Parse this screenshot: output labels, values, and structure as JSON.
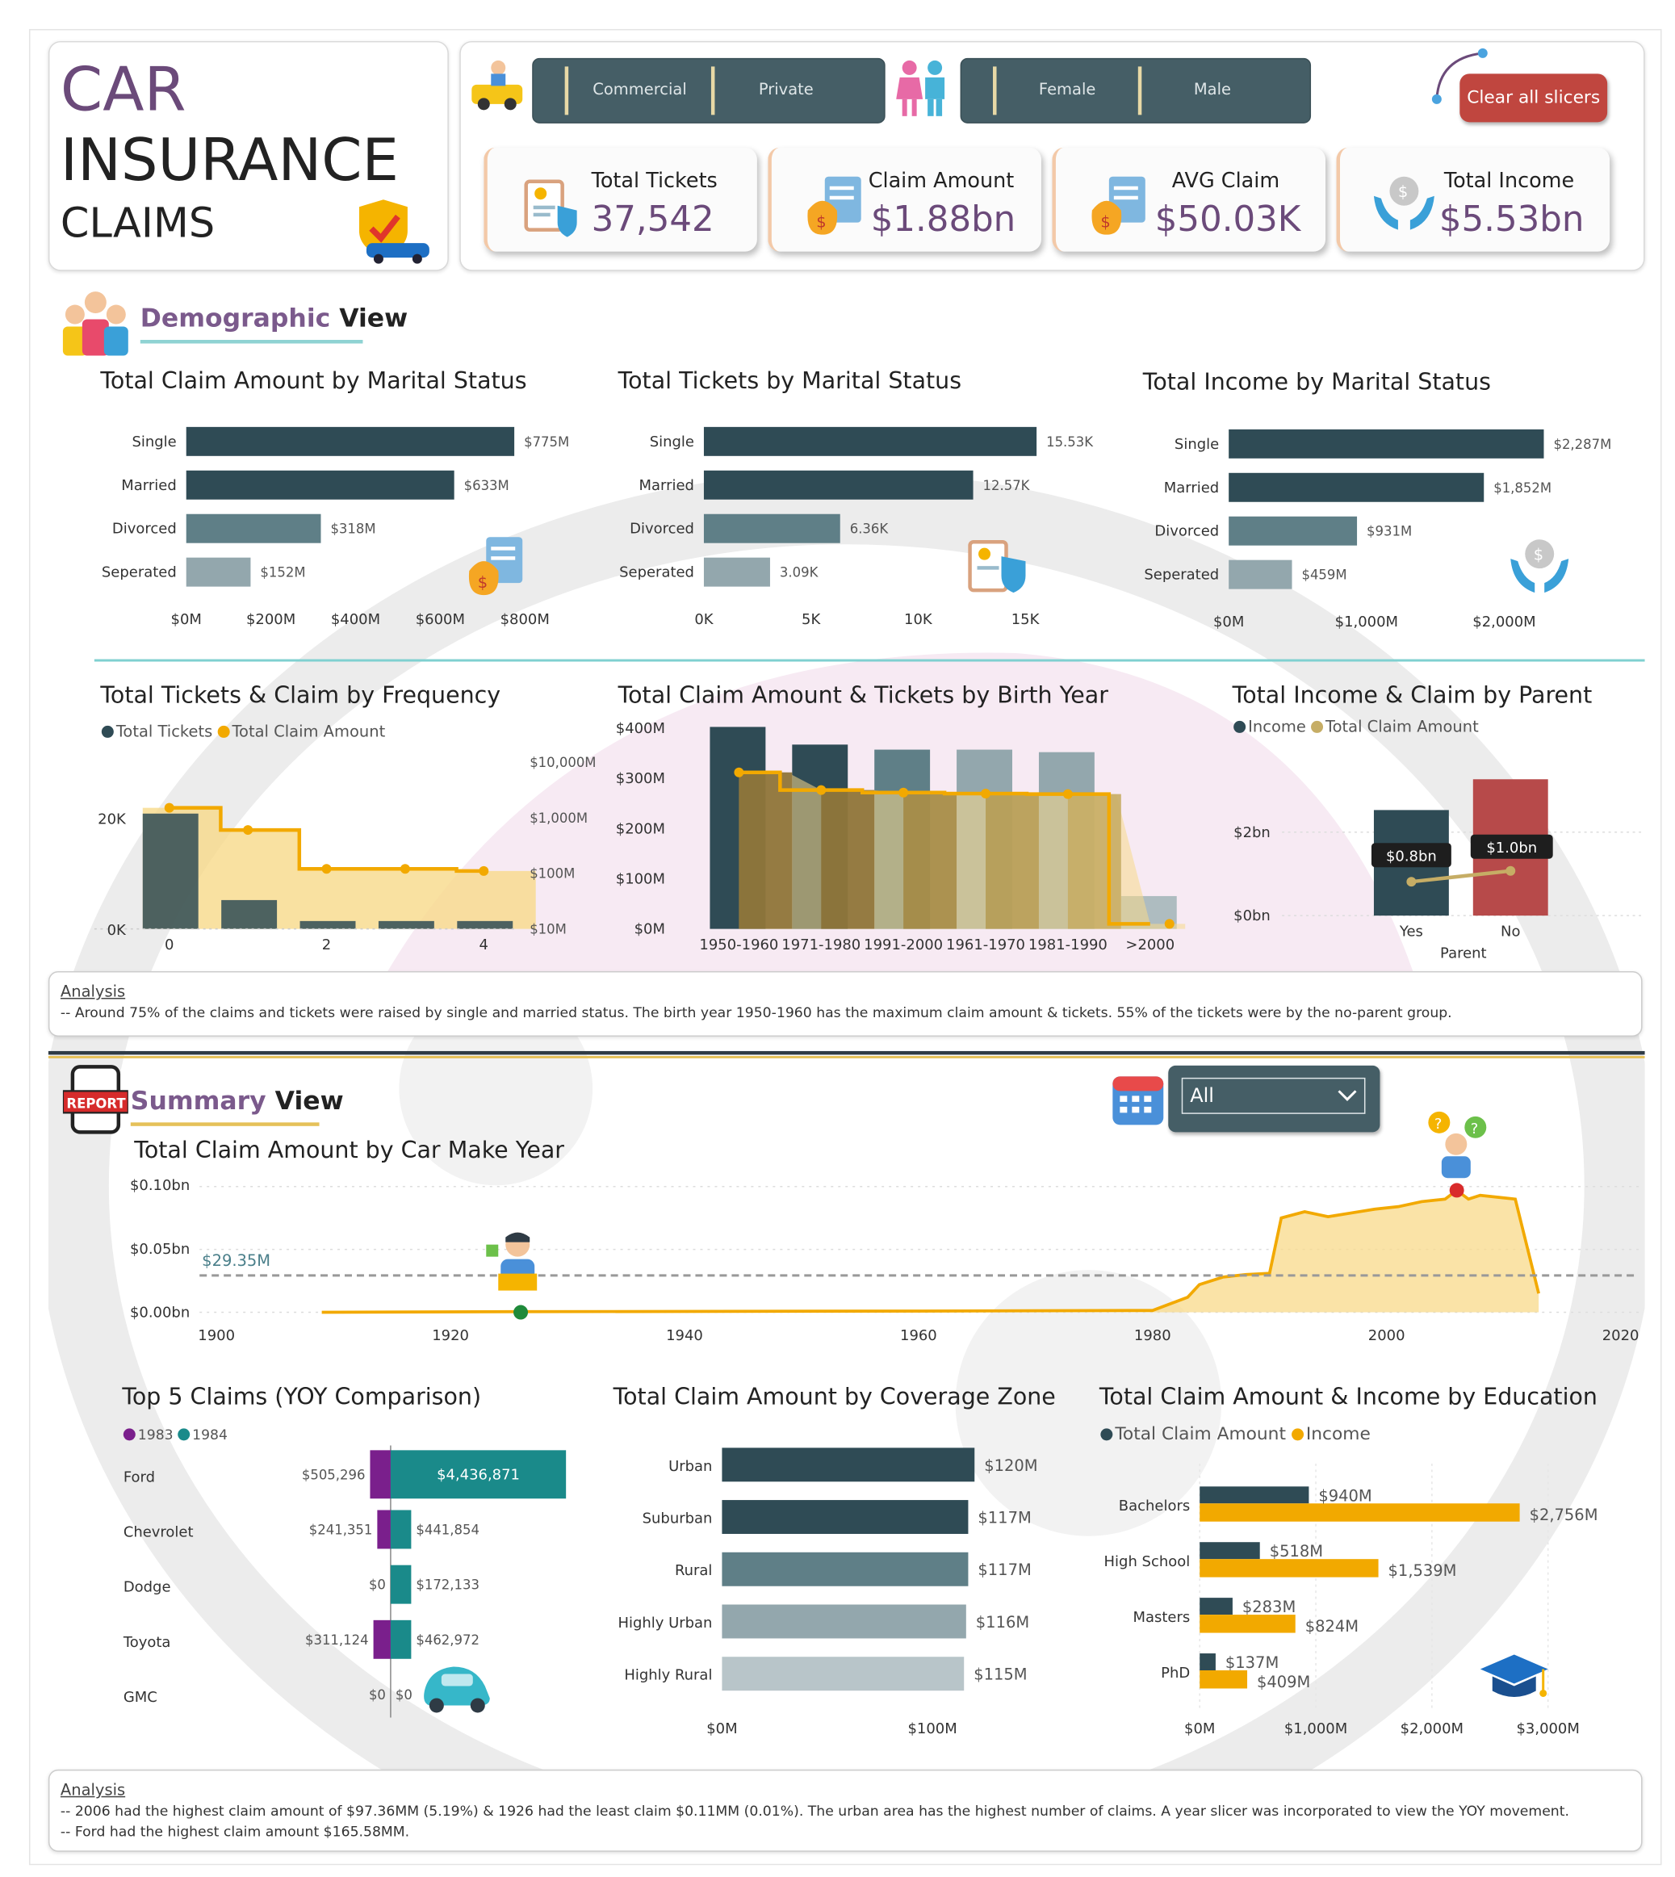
{
  "title": {
    "line1": "CAR",
    "line2": "INSURANCE",
    "line3": "CLAIMS"
  },
  "slicers": {
    "usage": [
      "Commercial",
      "Private"
    ],
    "gender": [
      "Female",
      "Male"
    ],
    "clear_label": "Clear all slicers",
    "year_value": "All"
  },
  "kpis": [
    {
      "label": "Total Tickets",
      "value": "37,542"
    },
    {
      "label": "Claim Amount",
      "value": "$1.88bn"
    },
    {
      "label": "AVG Claim",
      "value": "$50.03K"
    },
    {
      "label": "Total Income",
      "value": "$5.53bn"
    }
  ],
  "sections": {
    "demographic": {
      "accent": "Demographic",
      "rest": " View"
    },
    "summary": {
      "accent": "Summary",
      "rest": " View"
    },
    "report_badge": "REPORT"
  },
  "charts": {
    "claim_marital": {
      "title": "Total Claim Amount by Marital Status",
      "categories": [
        "Single",
        "Married",
        "Divorced",
        "Seperated"
      ],
      "values": [
        775,
        633,
        318,
        152
      ],
      "labels": [
        "$775M",
        "$633M",
        "$318M",
        "$152M"
      ],
      "ticks": [
        "$0M",
        "$200M",
        "$400M",
        "$600M",
        "$800M"
      ],
      "max": 800
    },
    "tickets_marital": {
      "title": "Total Tickets by Marital Status",
      "categories": [
        "Single",
        "Married",
        "Divorced",
        "Seperated"
      ],
      "values": [
        15.53,
        12.57,
        6.36,
        3.09
      ],
      "labels": [
        "15.53K",
        "12.57K",
        "6.36K",
        "3.09K"
      ],
      "ticks": [
        "0K",
        "5K",
        "10K",
        "15K"
      ],
      "max": 17.5
    },
    "income_marital": {
      "title": "Total Income by Marital Status",
      "categories": [
        "Single",
        "Married",
        "Divorced",
        "Seperated"
      ],
      "values": [
        2287,
        1852,
        931,
        459
      ],
      "labels": [
        "$2,287M",
        "$1,852M",
        "$931M",
        "$459M"
      ],
      "ticks": [
        "$0M",
        "$1,000M",
        "$2,000M"
      ],
      "max": 2300
    },
    "frequency": {
      "title": "Total Tickets & Claim by Frequency",
      "legend": [
        "Total Tickets",
        "Total Claim Amount"
      ],
      "x_ticks": [
        "0",
        "2",
        "4"
      ],
      "y_left": [
        "0K",
        "20K"
      ],
      "y_right": [
        "$10,000M",
        "$1,000M",
        "$100M",
        "$10M"
      ]
    },
    "birth_year": {
      "title": "Total Claim Amount & Tickets by Birth Year",
      "categories": [
        "1950-1960",
        "1971-1980",
        "1991-2000",
        "1961-1970",
        "1981-1990",
        ">2000"
      ],
      "y_ticks": [
        "$400M",
        "$300M",
        "$200M",
        "$100M",
        "$0M"
      ]
    },
    "parent": {
      "title": "Total Income & Claim by Parent",
      "legend": [
        "Income",
        "Total Claim Amount"
      ],
      "categories": [
        "Yes",
        "No"
      ],
      "labels": [
        "$0.8bn",
        "$1.0bn"
      ],
      "y_ticks": [
        "$2bn",
        "$0bn"
      ],
      "xlabel": "Parent"
    },
    "car_make_year": {
      "title": "Total Claim Amount by Car Make Year",
      "y_ticks": [
        "$0.10bn",
        "$0.05bn",
        "$0.00bn"
      ],
      "x_ticks": [
        "1900",
        "1920",
        "1940",
        "1960",
        "1980",
        "2000",
        "2020"
      ],
      "avg_label": "$29.35M"
    },
    "top5": {
      "title": "Top 5 Claims (YOY Comparison)",
      "legend": [
        "1983",
        "1984"
      ],
      "makes": [
        "Ford",
        "Chevrolet",
        "Dodge",
        "Toyota",
        "GMC"
      ],
      "y1983": [
        "$505,296",
        "$241,351",
        "$0",
        "$311,124",
        "$0"
      ],
      "y1984": [
        "$4,436,871",
        "$441,854",
        "$172,133",
        "$462,972",
        "$0"
      ]
    },
    "coverage": {
      "title": "Total Claim Amount by Coverage Zone",
      "categories": [
        "Urban",
        "Suburban",
        "Rural",
        "Highly Urban",
        "Highly Rural"
      ],
      "labels": [
        "$120M",
        "$117M",
        "$117M",
        "$116M",
        "$115M"
      ],
      "ticks": [
        "$0M",
        "$100M"
      ]
    },
    "education": {
      "title": "Total Claim Amount & Income by Education",
      "legend": [
        "Total Claim Amount",
        "Income"
      ],
      "categories": [
        "Bachelors",
        "High School",
        "Masters",
        "PhD"
      ],
      "claim_labels": [
        "$940M",
        "$518M",
        "$283M",
        "$137M"
      ],
      "income_labels": [
        "$2,756M",
        "$1,539M",
        "$824M",
        "$409M"
      ],
      "ticks": [
        "$0M",
        "$1,000M",
        "$2,000M",
        "$3,000M"
      ]
    }
  },
  "chart_data": [
    {
      "type": "bar",
      "title": "Total Claim Amount by Marital Status",
      "categories": [
        "Single",
        "Married",
        "Divorced",
        "Seperated"
      ],
      "values": [
        775,
        633,
        318,
        152
      ],
      "unit": "$M"
    },
    {
      "type": "bar",
      "title": "Total Tickets by Marital Status",
      "categories": [
        "Single",
        "Married",
        "Divorced",
        "Seperated"
      ],
      "values": [
        15530,
        12570,
        6360,
        3090
      ]
    },
    {
      "type": "bar",
      "title": "Total Income by Marital Status",
      "categories": [
        "Single",
        "Married",
        "Divorced",
        "Seperated"
      ],
      "values": [
        2287,
        1852,
        931,
        459
      ],
      "unit": "$M"
    },
    {
      "type": "bar",
      "title": "Total Tickets & Claim by Frequency",
      "categories": [
        0,
        1,
        2,
        3,
        4
      ],
      "series": [
        {
          "name": "Total Tickets",
          "values": [
            22000,
            5500,
            1500,
            1500,
            1500
          ]
        },
        {
          "name": "Total Claim Amount",
          "values": [
            1500,
            600,
            120,
            120,
            110
          ]
        }
      ],
      "y_right_scale": "log",
      "unit_right": "$M"
    },
    {
      "type": "bar",
      "title": "Total Claim Amount & Tickets by Birth Year",
      "categories": [
        "1950-1960",
        "1971-1980",
        "1991-2000",
        "1961-1970",
        "1981-1990",
        ">2000"
      ],
      "series": [
        {
          "name": "Total Tickets",
          "values": [
            400,
            365,
            355,
            355,
            350,
            65
          ]
        },
        {
          "name": "Total Claim Amount",
          "values": [
            310,
            275,
            270,
            268,
            267,
            10
          ]
        }
      ],
      "unit": "$M"
    },
    {
      "type": "bar",
      "title": "Total Income & Claim by Parent",
      "categories": [
        "Yes",
        "No"
      ],
      "series": [
        {
          "name": "Income",
          "values": [
            2.4,
            3.1
          ]
        },
        {
          "name": "Total Claim Amount",
          "values": [
            0.8,
            1.0
          ]
        }
      ],
      "unit": "$bn"
    },
    {
      "type": "area",
      "title": "Total Claim Amount by Car Make Year",
      "x": [
        1909,
        1925,
        1960,
        1981,
        1983,
        1984,
        1990,
        1991,
        1992,
        1995,
        2000,
        2006,
        2010,
        2011,
        2013
      ],
      "y": [
        0.0,
        0.0005,
        0.001,
        0.0015,
        0.015,
        0.025,
        0.03,
        0.075,
        0.08,
        0.075,
        0.085,
        0.097,
        0.092,
        0.09,
        0.015
      ],
      "average": 0.02935,
      "ylim": [
        0,
        0.1
      ],
      "xlim": [
        1900,
        2020
      ],
      "unit": "$bn"
    },
    {
      "type": "bar",
      "title": "Top 5 Claims (YOY Comparison)",
      "categories": [
        "Ford",
        "Chevrolet",
        "Dodge",
        "Toyota",
        "GMC"
      ],
      "series": [
        {
          "name": "1983",
          "values": [
            505296,
            241351,
            0,
            311124,
            0
          ]
        },
        {
          "name": "1984",
          "values": [
            4436871,
            441854,
            172133,
            462972,
            0
          ]
        }
      ]
    },
    {
      "type": "bar",
      "title": "Total Claim Amount by Coverage Zone",
      "categories": [
        "Urban",
        "Suburban",
        "Rural",
        "Highly Urban",
        "Highly Rural"
      ],
      "values": [
        120,
        117,
        117,
        116,
        115
      ],
      "unit": "$M"
    },
    {
      "type": "bar",
      "title": "Total Claim Amount & Income by Education",
      "categories": [
        "Bachelors",
        "High School",
        "Masters",
        "PhD"
      ],
      "series": [
        {
          "name": "Total Claim Amount",
          "values": [
            940,
            518,
            283,
            137
          ]
        },
        {
          "name": "Income",
          "values": [
            2756,
            1539,
            824,
            409
          ]
        }
      ],
      "unit": "$M"
    }
  ],
  "analysis1": {
    "heading": "Analysis",
    "line1": "-- Around 75% of the claims and tickets were raised by single and married status. The birth year 1950-1960 has the maximum claim amount & tickets. 55% of the tickets were by the no-parent group."
  },
  "analysis2": {
    "heading": "Analysis",
    "line1": "-- 2006 had the highest claim amount of $97.36MM (5.19%) & 1926 had the least claim $0.11MM (0.01%). The urban area has the highest number of claims. A year slicer was incorporated to view the YOY movement.",
    "line2": "-- Ford had the highest claim amount $165.58MM."
  },
  "colors": {
    "dark_teal": "#2f4b55",
    "mid_teal": "#5f7f87",
    "light_teal": "#93a7ad",
    "gold": "#f2a900",
    "khaki": "#c6ad65",
    "purple": "#7a1f8c",
    "teal": "#1a8a8a",
    "red": "#b74a4a",
    "accent_title": "#6b4a7a"
  }
}
